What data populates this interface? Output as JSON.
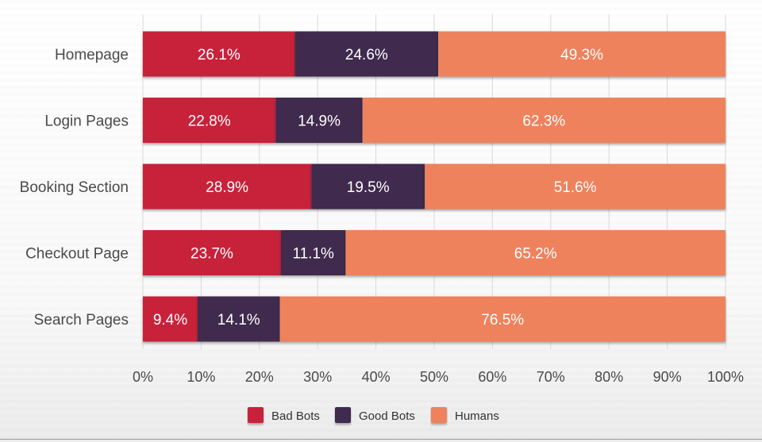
{
  "chart_data": {
    "type": "bar",
    "orientation": "horizontal",
    "stacked": true,
    "categories": [
      "Homepage",
      "Login Pages",
      "Booking Section",
      "Checkout Page",
      "Search Pages"
    ],
    "series": [
      {
        "name": "Bad Bots",
        "color": "#c8203a",
        "values": [
          26.1,
          22.8,
          28.9,
          23.7,
          9.4
        ],
        "labels": [
          "26.1%",
          "22.8%",
          "28.9%",
          "23.7%",
          "9.4%"
        ]
      },
      {
        "name": "Good Bots",
        "color": "#3f2b4d",
        "values": [
          24.6,
          14.9,
          19.5,
          11.1,
          14.1
        ],
        "labels": [
          "24.6%",
          "14.9%",
          "19.5%",
          "11.1%",
          "14.1%"
        ]
      },
      {
        "name": "Humans",
        "color": "#ee825d",
        "values": [
          49.3,
          62.3,
          51.6,
          65.2,
          76.5
        ],
        "labels": [
          "49.3%",
          "62.3%",
          "51.6%",
          "65.2%",
          "76.5%"
        ]
      }
    ],
    "xlim": [
      0,
      100
    ],
    "x_ticks": [
      "0%",
      "10%",
      "20%",
      "30%",
      "40%",
      "50%",
      "60%",
      "70%",
      "80%",
      "90%",
      "100%"
    ],
    "grid": true,
    "legend_position": "bottom-center",
    "title": "",
    "xlabel": "",
    "ylabel": ""
  }
}
